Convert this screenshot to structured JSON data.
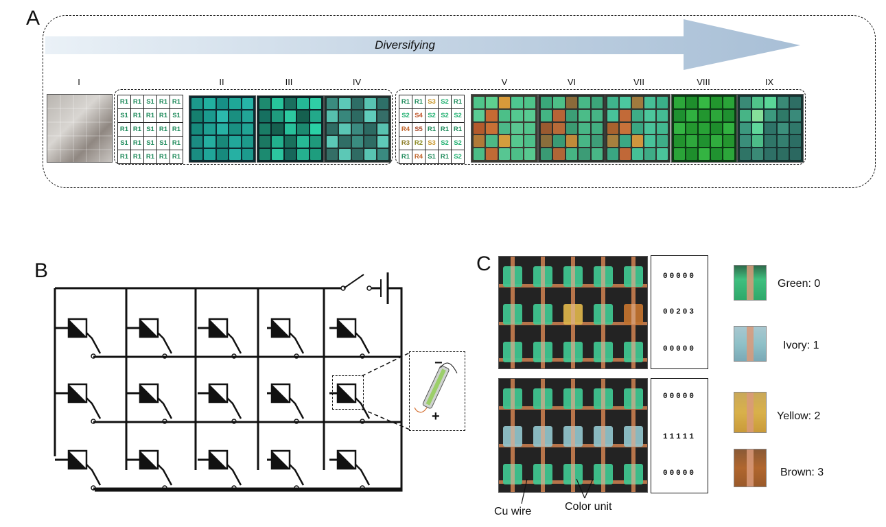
{
  "panels": {
    "a": "A",
    "b": "B",
    "c": "C"
  },
  "panel_a": {
    "arrow_label": "Diversifying",
    "stages": [
      "I",
      "II",
      "III",
      "IV",
      "V",
      "VI",
      "VII",
      "VIII",
      "IX"
    ],
    "grid1": [
      [
        "R1",
        "R1",
        "S1",
        "R1",
        "R1"
      ],
      [
        "S1",
        "R1",
        "R1",
        "R1",
        "S1"
      ],
      [
        "R1",
        "R1",
        "S1",
        "R1",
        "R1"
      ],
      [
        "S1",
        "R1",
        "S1",
        "S1",
        "R1"
      ],
      [
        "R1",
        "R1",
        "R1",
        "R1",
        "R1"
      ]
    ],
    "grid2": [
      [
        "R1",
        "R1",
        "S3",
        "S2",
        "R1"
      ],
      [
        "S2",
        "S4",
        "S2",
        "S2",
        "S2"
      ],
      [
        "R4",
        "S5",
        "R1",
        "R1",
        "R1"
      ],
      [
        "R3",
        "R2",
        "S3",
        "S2",
        "S2"
      ],
      [
        "R1",
        "R4",
        "S1",
        "R1",
        "S2"
      ]
    ]
  },
  "panel_b": {
    "polarity_minus": "−",
    "polarity_plus": "+"
  },
  "panel_c": {
    "codes_top": [
      "00000",
      "00203",
      "00000"
    ],
    "codes_bottom": [
      "00000",
      "11111",
      "00000"
    ],
    "legend": [
      {
        "label": "Green: 0",
        "color": "#3fbf7f"
      },
      {
        "label": "Ivory: 1",
        "color": "#8fc1c8"
      },
      {
        "label": "Yellow: 2",
        "color": "#d9b14a"
      },
      {
        "label": "Brown: 3",
        "color": "#b0662e"
      }
    ],
    "cu_wire_label": "Cu wire",
    "color_unit_label": "Color unit"
  }
}
